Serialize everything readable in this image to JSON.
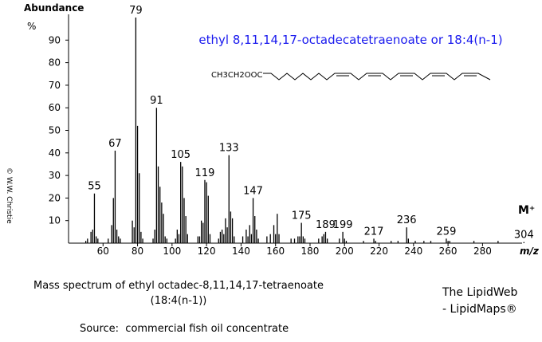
{
  "chart_data": {
    "type": "bar",
    "title": "ethyl 8,11,14,17-octadecatetraenoate or 18:4(n-1)",
    "y_label": "Abundance",
    "y_unit": "%",
    "x_label": "m/z",
    "molecular_ion_label": "M⁺",
    "structure_label": "CH3CH2OOC",
    "color": "#000000",
    "x": [
      50,
      51,
      53,
      54,
      55,
      56,
      57,
      63,
      65,
      66,
      67,
      68,
      69,
      70,
      77,
      78,
      79,
      80,
      81,
      82,
      83,
      89,
      90,
      91,
      92,
      93,
      94,
      95,
      96,
      97,
      102,
      103,
      104,
      105,
      106,
      107,
      108,
      109,
      115,
      116,
      117,
      118,
      119,
      120,
      121,
      122,
      127,
      128,
      129,
      130,
      131,
      132,
      133,
      134,
      135,
      136,
      141,
      143,
      144,
      145,
      146,
      147,
      148,
      149,
      150,
      155,
      157,
      159,
      160,
      161,
      162,
      169,
      171,
      173,
      174,
      175,
      176,
      177,
      185,
      187,
      188,
      189,
      190,
      197,
      199,
      200,
      201,
      211,
      217,
      218,
      227,
      231,
      236,
      237,
      241,
      246,
      250,
      259,
      260,
      261,
      275,
      289,
      304
    ],
    "values": [
      1,
      2,
      5,
      6,
      22,
      3,
      2,
      2,
      8,
      20,
      41,
      6,
      3,
      2,
      10,
      7,
      100,
      52,
      31,
      5,
      2,
      2,
      6,
      60,
      34,
      25,
      18,
      13,
      3,
      2,
      2,
      6,
      4,
      36,
      34,
      20,
      12,
      4,
      3,
      3,
      10,
      9,
      28,
      27,
      21,
      4,
      2,
      5,
      6,
      4,
      11,
      7,
      39,
      14,
      11,
      3,
      3,
      6,
      3,
      8,
      4,
      20,
      12,
      6,
      2,
      3,
      4,
      8,
      4,
      13,
      4,
      2,
      2,
      3,
      3,
      9,
      3,
      2,
      2,
      3,
      4,
      5,
      2,
      2,
      5,
      2,
      1,
      1,
      2,
      1,
      1,
      1,
      7,
      2,
      1,
      1,
      1,
      2,
      1,
      1,
      1,
      1,
      0.5
    ],
    "peak_labels": [
      55,
      67,
      79,
      91,
      105,
      119,
      133,
      147,
      175,
      189,
      199,
      217,
      236,
      259,
      304
    ],
    "xlim": [
      40,
      305
    ],
    "ylim": [
      0,
      100
    ],
    "xticks": [
      60,
      80,
      100,
      120,
      140,
      160,
      180,
      200,
      220,
      240,
      260,
      280
    ],
    "yticks": [
      10,
      20,
      30,
      40,
      50,
      60,
      70,
      80,
      90
    ]
  },
  "credit": "© W.W. Christie",
  "caption": {
    "line1": "Mass spectrum of ethyl octadec-8,11,14,17-tetraenoate",
    "line2": "(18:4(n-1))"
  },
  "brand": {
    "line1": "The LipidWeb",
    "line2": "- LipidMaps®"
  },
  "source": "Source:  commercial fish oil concentrate"
}
